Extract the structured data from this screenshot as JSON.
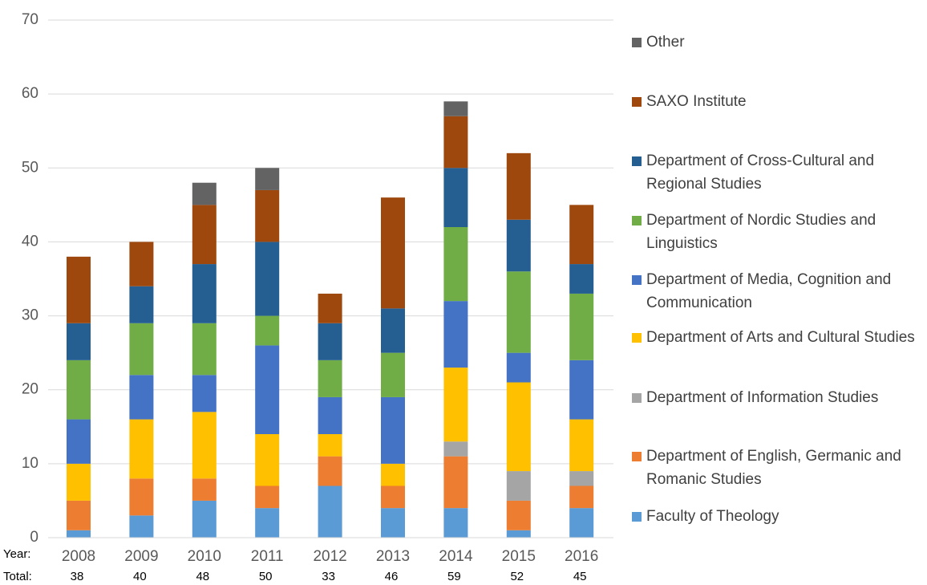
{
  "chart_data": {
    "type": "bar",
    "stacked": true,
    "categories": [
      "2008",
      "2009",
      "2010",
      "2011",
      "2012",
      "2013",
      "2014",
      "2015",
      "2016"
    ],
    "year_label": "Year:",
    "total_label": "Total:",
    "totals": [
      38,
      40,
      48,
      50,
      33,
      46,
      59,
      52,
      45
    ],
    "ylim": [
      0,
      70
    ],
    "yticks": [
      0,
      10,
      20,
      30,
      40,
      50,
      60,
      70
    ],
    "grid": true,
    "series": [
      {
        "name": "Faculty of Theology",
        "color": "#5b9bd5",
        "values": [
          1,
          3,
          5,
          4,
          7,
          4,
          4,
          1,
          4
        ]
      },
      {
        "name": "Department of English, Germanic and Romanic Studies",
        "color": "#ed7d31",
        "values": [
          4,
          5,
          3,
          3,
          4,
          3,
          7,
          4,
          3
        ]
      },
      {
        "name": "Department of Information Studies",
        "color": "#a5a5a5",
        "values": [
          0,
          0,
          0,
          0,
          0,
          0,
          2,
          4,
          2
        ]
      },
      {
        "name": "Department of Arts and Cultural Studies",
        "color": "#ffc000",
        "values": [
          5,
          8,
          9,
          7,
          3,
          3,
          10,
          12,
          7
        ]
      },
      {
        "name": "Department of Media, Cognition and Communication",
        "color": "#4472c4",
        "values": [
          6,
          6,
          5,
          12,
          5,
          9,
          9,
          4,
          8
        ]
      },
      {
        "name": "Department of Nordic Studies and Linguistics",
        "color": "#70ad47",
        "values": [
          8,
          7,
          7,
          4,
          5,
          6,
          10,
          11,
          9
        ]
      },
      {
        "name": "Department of Cross-Cultural and Regional Studies",
        "color": "#255e91",
        "values": [
          5,
          5,
          8,
          10,
          5,
          6,
          8,
          7,
          4
        ]
      },
      {
        "name": "SAXO Institute",
        "color": "#9e480e",
        "values": [
          9,
          6,
          8,
          7,
          4,
          15,
          7,
          9,
          8
        ]
      },
      {
        "name": "Other",
        "color": "#636363",
        "values": [
          0,
          0,
          3,
          3,
          0,
          0,
          2,
          0,
          0
        ]
      }
    ]
  }
}
